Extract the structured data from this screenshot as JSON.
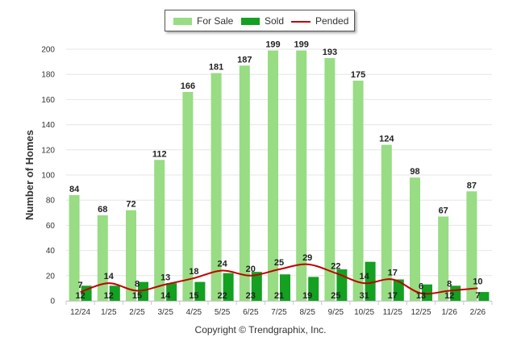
{
  "chart_data": {
    "type": "bar",
    "title": "",
    "xlabel": "",
    "ylabel": "Number of Homes",
    "ylim": [
      0,
      200
    ],
    "yticks": [
      0,
      20,
      40,
      60,
      80,
      100,
      120,
      140,
      160,
      180,
      200
    ],
    "categories": [
      "12/24",
      "1/25",
      "2/25",
      "3/25",
      "4/25",
      "5/25",
      "6/25",
      "7/25",
      "8/25",
      "9/25",
      "10/25",
      "11/25",
      "12/25",
      "1/26",
      "2/26"
    ],
    "series": [
      {
        "name": "For Sale",
        "kind": "bar",
        "color": "#98DC84",
        "values": [
          84,
          68,
          72,
          112,
          166,
          181,
          187,
          199,
          199,
          193,
          175,
          124,
          98,
          67,
          87
        ]
      },
      {
        "name": "Sold",
        "kind": "bar",
        "color": "#14A020",
        "values": [
          12,
          12,
          15,
          14,
          15,
          22,
          23,
          21,
          19,
          25,
          31,
          17,
          13,
          12,
          7
        ]
      },
      {
        "name": "Pended",
        "kind": "line",
        "color": "#C00000",
        "values": [
          7,
          14,
          8,
          13,
          18,
          24,
          20,
          25,
          29,
          22,
          14,
          17,
          6,
          8,
          10
        ]
      }
    ],
    "legend_position": "top-center"
  },
  "legend": {
    "for_sale": "For Sale",
    "sold": "Sold",
    "pended": "Pended"
  },
  "copyright": "Copyright © Trendgraphix, Inc."
}
